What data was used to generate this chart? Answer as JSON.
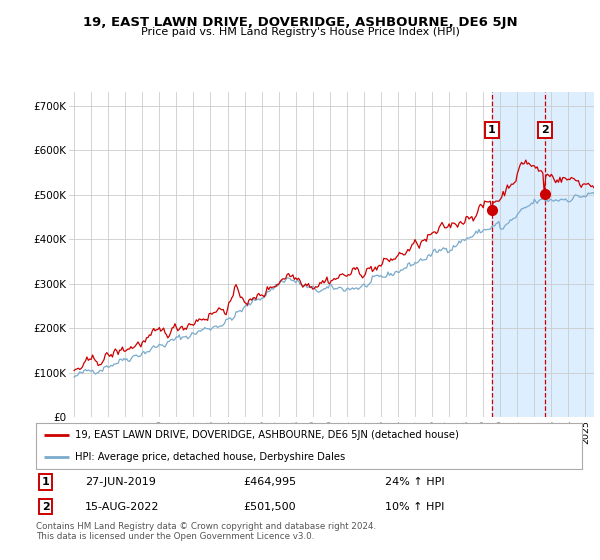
{
  "title": "19, EAST LAWN DRIVE, DOVERIDGE, ASHBOURNE, DE6 5JN",
  "subtitle": "Price paid vs. HM Land Registry's House Price Index (HPI)",
  "red_label": "19, EAST LAWN DRIVE, DOVERIDGE, ASHBOURNE, DE6 5JN (detached house)",
  "blue_label": "HPI: Average price, detached house, Derbyshire Dales",
  "sale1_date": "27-JUN-2019",
  "sale1_price": "£464,995",
  "sale1_hpi": "24% ↑ HPI",
  "sale2_date": "15-AUG-2022",
  "sale2_price": "£501,500",
  "sale2_hpi": "10% ↑ HPI",
  "footnote": "Contains HM Land Registry data © Crown copyright and database right 2024.\nThis data is licensed under the Open Government Licence v3.0.",
  "red_color": "#cc0000",
  "blue_color": "#7aabcc",
  "bg_color": "#ffffff",
  "grid_color": "#cccccc",
  "highlight_bg": "#ddeeff",
  "sale1_x_year": 2019.49,
  "sale1_y": 464995,
  "sale2_x_year": 2022.62,
  "sale2_y": 501500,
  "ylim": [
    0,
    730000
  ],
  "xlim_start": 1994.7,
  "xlim_end": 2025.5,
  "yticks": [
    0,
    100000,
    200000,
    300000,
    400000,
    500000,
    600000,
    700000
  ]
}
